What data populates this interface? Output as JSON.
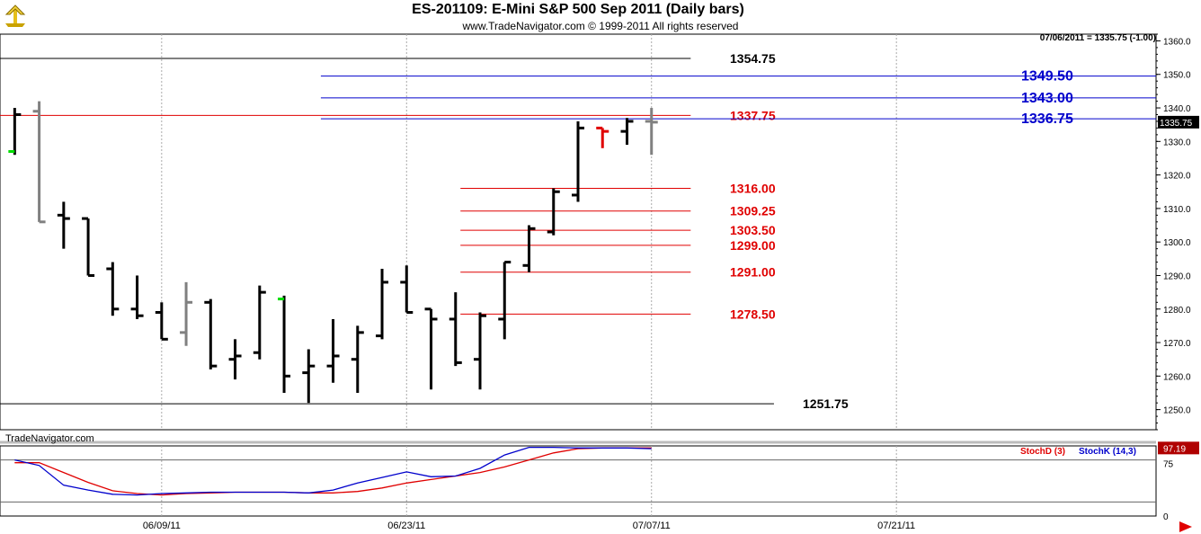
{
  "header": {
    "title": "ES-201109:  E-Mini S&P 500 Sep 2011  (Daily bars)",
    "copyright": "www.TradeNavigator.com © 1999-2011 All rights reserved",
    "readout": "07/06/2011 = 1335.75 (-1.00)",
    "watermark": "TradeNavigator.com",
    "logo_icon": "trade-navigator-logo-icon"
  },
  "colors": {
    "black_level": "#000000",
    "blue_level": "#0000cc",
    "red_level": "#e00000",
    "bar": "#000000",
    "bar_gray": "#808080",
    "bar_red": "#e00000",
    "tick_green": "#00dd00",
    "stoch_d": "#e00000",
    "stoch_k": "#0000cc"
  },
  "chart_data": [
    {
      "type": "ohlc",
      "price_axis": {
        "ylim": [
          1244,
          1362
        ],
        "ticks": [
          "1250.0",
          "1260.0",
          "1270.0",
          "1280.0",
          "1290.0",
          "1300.0",
          "1310.0",
          "1320.0",
          "1330.0",
          "1340.0",
          "1350.0",
          "1360.0"
        ],
        "last_price_label": "1335.75"
      },
      "x_axis": {
        "labels": [
          {
            "text": "06/09/11",
            "index": 6
          },
          {
            "text": "06/23/11",
            "index": 16
          },
          {
            "text": "07/07/11",
            "index": 26
          },
          {
            "text": "07/21/11",
            "index": 36
          }
        ],
        "index_range": [
          -0.6,
          46.6
        ]
      },
      "bars": [
        {
          "i": 0,
          "o": 1327,
          "h": 1340,
          "l": 1326,
          "c": 1338,
          "color": "bar",
          "open_tick": "green"
        },
        {
          "i": 1,
          "o": 1339,
          "h": 1342,
          "l": 1306,
          "c": 1306,
          "color": "gray"
        },
        {
          "i": 2,
          "o": 1308,
          "h": 1312,
          "l": 1298,
          "c": 1307,
          "color": "bar"
        },
        {
          "i": 3,
          "o": 1307,
          "h": 1307,
          "l": 1290,
          "c": 1290,
          "color": "bar"
        },
        {
          "i": 4,
          "o": 1292,
          "h": 1294,
          "l": 1278,
          "c": 1280,
          "color": "bar"
        },
        {
          "i": 5,
          "o": 1280,
          "h": 1290,
          "l": 1277,
          "c": 1278,
          "color": "bar"
        },
        {
          "i": 6,
          "o": 1279,
          "h": 1282,
          "l": 1271,
          "c": 1271,
          "color": "bar"
        },
        {
          "i": 7,
          "o": 1273,
          "h": 1288,
          "l": 1269,
          "c": 1282,
          "color": "gray"
        },
        {
          "i": 8,
          "o": 1282,
          "h": 1283,
          "l": 1262,
          "c": 1263,
          "color": "bar"
        },
        {
          "i": 9,
          "o": 1265,
          "h": 1271,
          "l": 1259,
          "c": 1266,
          "color": "bar"
        },
        {
          "i": 10,
          "o": 1267,
          "h": 1287,
          "l": 1265,
          "c": 1285,
          "color": "bar"
        },
        {
          "i": 11,
          "o": 1283,
          "h": 1284,
          "l": 1255,
          "c": 1260,
          "color": "bar",
          "open_tick": "green"
        },
        {
          "i": 12,
          "o": 1261,
          "h": 1268,
          "l": 1252,
          "c": 1263,
          "color": "bar"
        },
        {
          "i": 13,
          "o": 1263,
          "h": 1277,
          "l": 1258,
          "c": 1266,
          "color": "bar"
        },
        {
          "i": 14,
          "o": 1265,
          "h": 1275,
          "l": 1255,
          "c": 1273,
          "color": "bar"
        },
        {
          "i": 15,
          "o": 1272,
          "h": 1292,
          "l": 1271,
          "c": 1288,
          "color": "bar"
        },
        {
          "i": 16,
          "o": 1288,
          "h": 1293,
          "l": 1279,
          "c": 1279,
          "color": "bar"
        },
        {
          "i": 17,
          "o": 1280,
          "h": 1280,
          "l": 1256,
          "c": 1277,
          "color": "bar"
        },
        {
          "i": 18,
          "o": 1277,
          "h": 1285,
          "l": 1263,
          "c": 1264,
          "color": "bar"
        },
        {
          "i": 19,
          "o": 1265,
          "h": 1279,
          "l": 1256,
          "c": 1278,
          "color": "bar"
        },
        {
          "i": 20,
          "o": 1277,
          "h": 1294,
          "l": 1271,
          "c": 1294,
          "color": "bar"
        },
        {
          "i": 21,
          "o": 1293,
          "h": 1305,
          "l": 1291,
          "c": 1304,
          "color": "bar"
        },
        {
          "i": 22,
          "o": 1303,
          "h": 1316,
          "l": 1302,
          "c": 1315,
          "color": "bar"
        },
        {
          "i": 23,
          "o": 1314,
          "h": 1336,
          "l": 1312,
          "c": 1334,
          "color": "bar"
        },
        {
          "i": 24,
          "o": 1334,
          "h": 1334,
          "l": 1328,
          "c": 1333,
          "color": "red"
        },
        {
          "i": 25,
          "o": 1333,
          "h": 1337,
          "l": 1329,
          "c": 1336,
          "color": "bar"
        },
        {
          "i": 26,
          "o": 1336,
          "h": 1340,
          "l": 1326,
          "c": 1335.75,
          "color": "gray"
        }
      ],
      "levels": [
        {
          "value": 1354.75,
          "label": "1354.75",
          "color": "black",
          "from_index": -0.6,
          "to_index": 27.6
        },
        {
          "value": 1349.5,
          "label": "1349.50",
          "color": "blue",
          "from_index": 12.5,
          "to_index": 46.6
        },
        {
          "value": 1343.0,
          "label": "1343.00",
          "color": "blue",
          "from_index": 12.5,
          "to_index": 46.6
        },
        {
          "value": 1337.75,
          "label": "1337.75",
          "color": "red",
          "from_index": -0.6,
          "to_index": 27.6
        },
        {
          "value": 1336.75,
          "label": "1336.75",
          "color": "blue",
          "from_index": 12.5,
          "to_index": 46.6
        },
        {
          "value": 1316.0,
          "label": "1316.00",
          "color": "red",
          "from_index": 18.2,
          "to_index": 27.6
        },
        {
          "value": 1309.25,
          "label": "1309.25",
          "color": "red",
          "from_index": 18.2,
          "to_index": 27.6
        },
        {
          "value": 1303.5,
          "label": "1303.50",
          "color": "red",
          "from_index": 18.2,
          "to_index": 27.6
        },
        {
          "value": 1299.0,
          "label": "1299.00",
          "color": "red",
          "from_index": 18.2,
          "to_index": 27.6
        },
        {
          "value": 1291.0,
          "label": "1291.00",
          "color": "red",
          "from_index": 18.2,
          "to_index": 27.6
        },
        {
          "value": 1278.5,
          "label": "1278.50",
          "color": "red",
          "from_index": 18.2,
          "to_index": 27.6
        },
        {
          "value": 1251.75,
          "label": "1251.75",
          "color": "black",
          "from_index": -0.6,
          "to_index": 31.0
        }
      ]
    },
    {
      "type": "line",
      "ylim": [
        0,
        100
      ],
      "ticks": [
        "75",
        "0"
      ],
      "reference_lines": [
        80,
        20
      ],
      "last_value_label": "97.19",
      "series": [
        {
          "name": "StochD (3)",
          "color": "stoch_d",
          "x": [
            0,
            1,
            2,
            3,
            4,
            5,
            6,
            7,
            8,
            9,
            10,
            11,
            12,
            13,
            14,
            15,
            16,
            17,
            18,
            19,
            20,
            21,
            22,
            23,
            24,
            25,
            26
          ],
          "values": [
            76,
            76,
            62,
            48,
            36,
            32,
            30,
            32,
            33,
            34,
            34,
            34,
            33,
            33,
            35,
            40,
            47,
            52,
            57,
            62,
            70,
            80,
            90,
            96,
            97,
            97,
            97
          ]
        },
        {
          "name": "StochK (14,3)",
          "color": "stoch_k",
          "x": [
            0,
            1,
            2,
            3,
            4,
            5,
            6,
            7,
            8,
            9,
            10,
            11,
            12,
            13,
            14,
            15,
            16,
            17,
            18,
            19,
            20,
            21,
            22,
            23,
            24,
            25,
            26
          ],
          "values": [
            80,
            72,
            44,
            37,
            31,
            30,
            32,
            33,
            34,
            34,
            34,
            34,
            33,
            37,
            47,
            55,
            63,
            56,
            57,
            68,
            87,
            98,
            98,
            97,
            97,
            97,
            96
          ]
        }
      ]
    }
  ]
}
